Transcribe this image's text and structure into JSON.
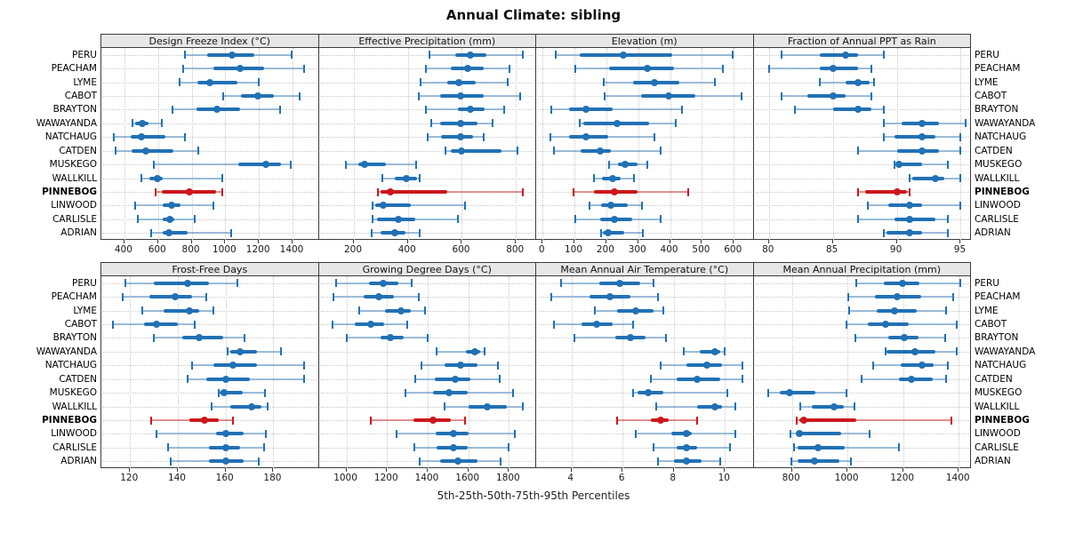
{
  "title": "Annual Climate: sibling",
  "footer": "5th-25th-50th-75th-95th Percentiles",
  "colors": {
    "blue": "#2171b5",
    "blue_light": "rgba(33,113,181,0.42)",
    "red": "#cb181d",
    "red_light": "rgba(203,24,29,0.45)",
    "header_bg": "#e7e7e7",
    "panel_border": "#3c3c3c",
    "grid": "#c9c9c9"
  },
  "chart_data": {
    "type": "scatter",
    "subtype": "dot-and-whisker percentile plot (5th-25th-50th-75th-95th), trellis 2x4 panels",
    "layout": {
      "rows": 2,
      "cols": 4,
      "grid": "dotted",
      "legend": "none",
      "site_labels": "left and right"
    },
    "percentiles": [
      "p5",
      "p25",
      "p50",
      "p75",
      "p95"
    ],
    "sites": [
      "PERU",
      "PEACHAM",
      "LYME",
      "CABOT",
      "BRAYTON",
      "WAWAYANDA",
      "NATCHAUG",
      "CATDEN",
      "MUSKEGO",
      "WALLKILL",
      "PINNEBOG",
      "LINWOOD",
      "CARLISLE",
      "ADRIAN"
    ],
    "highlight_site": "PINNEBOG",
    "panels": [
      {
        "title": "Design Freeze Index (°C)",
        "ticks": [
          400,
          600,
          800,
          1000,
          1200,
          1400
        ],
        "xlim": [
          263,
          1556
        ],
        "series": [
          [
            760,
            890,
            1040,
            1170,
            1395
          ],
          [
            750,
            930,
            1090,
            1230,
            1470
          ],
          [
            730,
            835,
            910,
            1070,
            1200
          ],
          [
            985,
            1095,
            1195,
            1290,
            1440
          ],
          [
            685,
            830,
            950,
            1090,
            1325
          ],
          [
            450,
            465,
            505,
            545,
            620
          ],
          [
            335,
            435,
            500,
            645,
            760
          ],
          [
            345,
            445,
            530,
            690,
            840
          ],
          [
            575,
            1080,
            1240,
            1330,
            1390
          ],
          [
            500,
            550,
            595,
            630,
            980
          ],
          [
            585,
            620,
            785,
            945,
            980
          ],
          [
            465,
            630,
            680,
            735,
            930
          ],
          [
            480,
            630,
            670,
            695,
            820
          ],
          [
            560,
            630,
            665,
            775,
            1035
          ]
        ]
      },
      {
        "title": "Effective Precipitation (mm)",
        "ticks": [
          200,
          400,
          600,
          800
        ],
        "xlim": [
          70,
          875
        ],
        "series": [
          [
            480,
            575,
            630,
            690,
            825
          ],
          [
            468,
            560,
            620,
            680,
            775
          ],
          [
            446,
            545,
            590,
            650,
            770
          ],
          [
            440,
            520,
            595,
            680,
            815
          ],
          [
            468,
            585,
            630,
            685,
            755
          ],
          [
            485,
            520,
            595,
            658,
            713
          ],
          [
            474,
            524,
            594,
            641,
            682
          ],
          [
            540,
            560,
            600,
            745,
            805
          ],
          [
            170,
            215,
            240,
            320,
            430
          ],
          [
            305,
            350,
            395,
            435,
            445
          ],
          [
            290,
            300,
            335,
            545,
            825
          ],
          [
            268,
            280,
            310,
            410,
            610
          ],
          [
            268,
            285,
            365,
            427,
            585
          ],
          [
            266,
            300,
            350,
            390,
            445
          ]
        ]
      },
      {
        "title": "Elevation (m)",
        "ticks": [
          0,
          100,
          200,
          300,
          400,
          500,
          600
        ],
        "xlim": [
          -20,
          662
        ],
        "series": [
          [
            42,
            116,
            254,
            407,
            597
          ],
          [
            102,
            209,
            328,
            411,
            565
          ],
          [
            193,
            285,
            351,
            428,
            541
          ],
          [
            195,
            310,
            395,
            479,
            625
          ],
          [
            28,
            82,
            137,
            219,
            437
          ],
          [
            116,
            127,
            234,
            335,
            419
          ],
          [
            25,
            84,
            137,
            207,
            351
          ],
          [
            37,
            120,
            180,
            215,
            370
          ],
          [
            209,
            237,
            258,
            298,
            328
          ],
          [
            161,
            186,
            219,
            246,
            288
          ],
          [
            96,
            161,
            226,
            298,
            458
          ],
          [
            147,
            184,
            214,
            268,
            312
          ],
          [
            102,
            181,
            226,
            282,
            370
          ],
          [
            184,
            190,
            206,
            256,
            314
          ]
        ]
      },
      {
        "title": "Fraction of Annual PPT as Rain",
        "ticks": [
          80,
          85,
          90,
          95
        ],
        "xlim": [
          78.8,
          95.8
        ],
        "series": [
          [
            81,
            84,
            86,
            87,
            89
          ],
          [
            80,
            84,
            85,
            87,
            88
          ],
          [
            84,
            86,
            87,
            87.9,
            88.2
          ],
          [
            81,
            83,
            85,
            86,
            88
          ],
          [
            82,
            85,
            87,
            88,
            89
          ],
          [
            89,
            90.4,
            92,
            93.3,
            95.4
          ],
          [
            89,
            89.8,
            92,
            93,
            95
          ],
          [
            87,
            90,
            92,
            93.3,
            95
          ],
          [
            89.8,
            90,
            90.2,
            92,
            94
          ],
          [
            91,
            91.2,
            93,
            93.7,
            95
          ],
          [
            87,
            87.5,
            90,
            90.8,
            91
          ],
          [
            87.7,
            89.3,
            91,
            92,
            95
          ],
          [
            87,
            89.8,
            91,
            93,
            94
          ],
          [
            89,
            89.2,
            91,
            92,
            94
          ]
        ]
      },
      {
        "title": "Frost-Free Days",
        "ticks": [
          120,
          140,
          160,
          180
        ],
        "xlim": [
          108,
          199
        ],
        "series": [
          [
            118,
            130,
            144,
            153,
            165
          ],
          [
            117,
            128,
            139,
            146,
            152
          ],
          [
            125,
            134,
            145,
            149,
            155
          ],
          [
            113,
            126,
            131,
            140,
            147
          ],
          [
            130,
            142,
            149,
            159,
            168
          ],
          [
            161,
            162,
            166,
            173,
            183
          ],
          [
            146,
            155,
            163,
            173,
            193
          ],
          [
            144,
            152,
            160,
            170,
            193
          ],
          [
            157,
            157.5,
            159.5,
            167,
            176.5
          ],
          [
            154,
            162,
            171,
            175,
            177.5
          ],
          [
            129,
            145,
            151,
            157,
            163
          ],
          [
            131,
            156,
            160,
            167.5,
            177
          ],
          [
            136,
            153,
            160,
            166,
            176
          ],
          [
            137,
            153,
            160,
            167.5,
            174
          ]
        ]
      },
      {
        "title": "Growing Degree Days (°C)",
        "ticks": [
          1000,
          1200,
          1400,
          1600,
          1800
        ],
        "xlim": [
          864,
          1934
        ],
        "series": [
          [
            950,
            1110,
            1180,
            1255,
            1320
          ],
          [
            935,
            1085,
            1160,
            1235,
            1355
          ],
          [
            1065,
            1190,
            1270,
            1315,
            1385
          ],
          [
            930,
            1040,
            1120,
            1185,
            1300
          ],
          [
            1000,
            1170,
            1215,
            1280,
            1400
          ],
          [
            1445,
            1590,
            1633,
            1657,
            1680
          ],
          [
            1370,
            1485,
            1560,
            1645,
            1745
          ],
          [
            1340,
            1435,
            1535,
            1610,
            1755
          ],
          [
            1290,
            1425,
            1505,
            1595,
            1820
          ],
          [
            1485,
            1600,
            1695,
            1790,
            1870
          ],
          [
            1120,
            1330,
            1425,
            1515,
            1585
          ],
          [
            1245,
            1440,
            1525,
            1600,
            1830
          ],
          [
            1335,
            1445,
            1525,
            1595,
            1800
          ],
          [
            1360,
            1460,
            1550,
            1645,
            1760
          ]
        ]
      },
      {
        "title": "Mean Annual Air Temperature (°C)",
        "ticks": [
          4,
          6,
          8,
          10
        ],
        "xlim": [
          2.62,
          11.12
        ],
        "series": [
          [
            3.6,
            5.1,
            5.9,
            6.7,
            7.2
          ],
          [
            3.2,
            4.7,
            5.5,
            6.3,
            7.4
          ],
          [
            4.9,
            5.8,
            6.5,
            7.2,
            7.6
          ],
          [
            3.3,
            4.4,
            5.0,
            5.6,
            6.4
          ],
          [
            4.1,
            5.7,
            6.3,
            6.9,
            7.7
          ],
          [
            8.4,
            9.0,
            9.6,
            9.8,
            10.0
          ],
          [
            7.5,
            8.5,
            9.3,
            9.9,
            10.7
          ],
          [
            7.1,
            8.1,
            8.9,
            9.8,
            10.7
          ],
          [
            6.4,
            6.6,
            7.0,
            7.6,
            10.1
          ],
          [
            7.3,
            8.9,
            9.6,
            9.9,
            10.4
          ],
          [
            5.8,
            7.1,
            7.5,
            7.8,
            8.9
          ],
          [
            6.5,
            7.9,
            8.5,
            8.7,
            10.4
          ],
          [
            7.2,
            8.1,
            8.5,
            8.9,
            10.2
          ],
          [
            7.4,
            8.0,
            8.5,
            9.1,
            9.8
          ]
        ]
      },
      {
        "title": "Mean Annual Precipitation (mm)",
        "ticks": [
          800,
          1000,
          1200,
          1400
        ],
        "xlim": [
          662,
          1444
        ],
        "series": [
          [
            1030,
            1130,
            1198,
            1258,
            1405
          ],
          [
            1003,
            1100,
            1177,
            1264,
            1381
          ],
          [
            1005,
            1105,
            1170,
            1250,
            1353
          ],
          [
            997,
            1072,
            1138,
            1219,
            1392
          ],
          [
            1029,
            1147,
            1203,
            1255,
            1351
          ],
          [
            1138,
            1141,
            1241,
            1315,
            1392
          ],
          [
            1091,
            1191,
            1269,
            1309,
            1360
          ],
          [
            1050,
            1185,
            1230,
            1305,
            1355
          ],
          [
            715,
            755,
            790,
            885,
            995
          ],
          [
            830,
            872,
            952,
            987,
            1024
          ],
          [
            818,
            828,
            843,
            1030,
            1375
          ],
          [
            795,
            814,
            827,
            978,
            1080
          ],
          [
            807,
            820,
            895,
            990,
            1185
          ],
          [
            797,
            820,
            880,
            970,
            1013
          ]
        ]
      }
    ]
  }
}
